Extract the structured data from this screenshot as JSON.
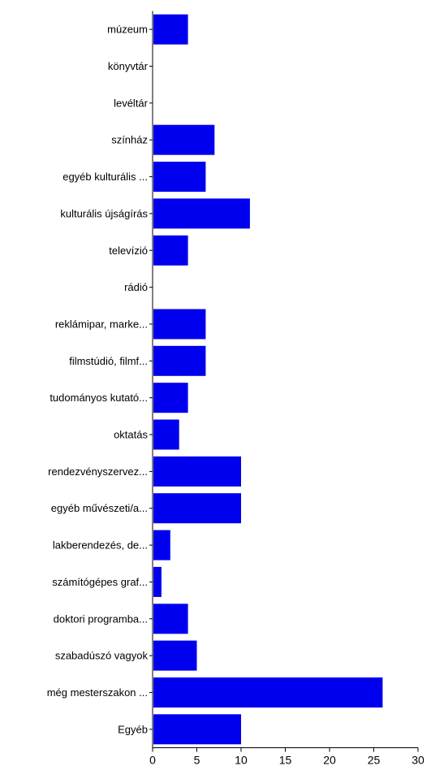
{
  "chart_data": {
    "type": "bar",
    "orientation": "horizontal",
    "title": "",
    "xlabel": "",
    "ylabel": "",
    "xlim": [
      0,
      30
    ],
    "x_ticks": [
      0,
      5,
      10,
      15,
      20,
      25,
      30
    ],
    "grid": false,
    "bar_color": "#0000ee",
    "categories": [
      "múzeum",
      "könyvtár",
      "levéltár",
      "színház",
      "egyéb kulturális ...",
      "kulturális újságírás",
      "televízió",
      "rádió",
      "reklámipar, marke...",
      "filmstúdió, filmf...",
      "tudományos kutató...",
      "oktatás",
      "rendezvényszervez...",
      "egyéb művészeti/a...",
      "lakberendezés, de...",
      "számítógépes graf...",
      "doktori programba...",
      "szabadúszó vagyok",
      "még mesterszakon ...",
      "Egyéb"
    ],
    "values": [
      4,
      0,
      0,
      7,
      6,
      11,
      4,
      0,
      6,
      6,
      4,
      3,
      10,
      10,
      2,
      1,
      4,
      5,
      26,
      10
    ]
  }
}
